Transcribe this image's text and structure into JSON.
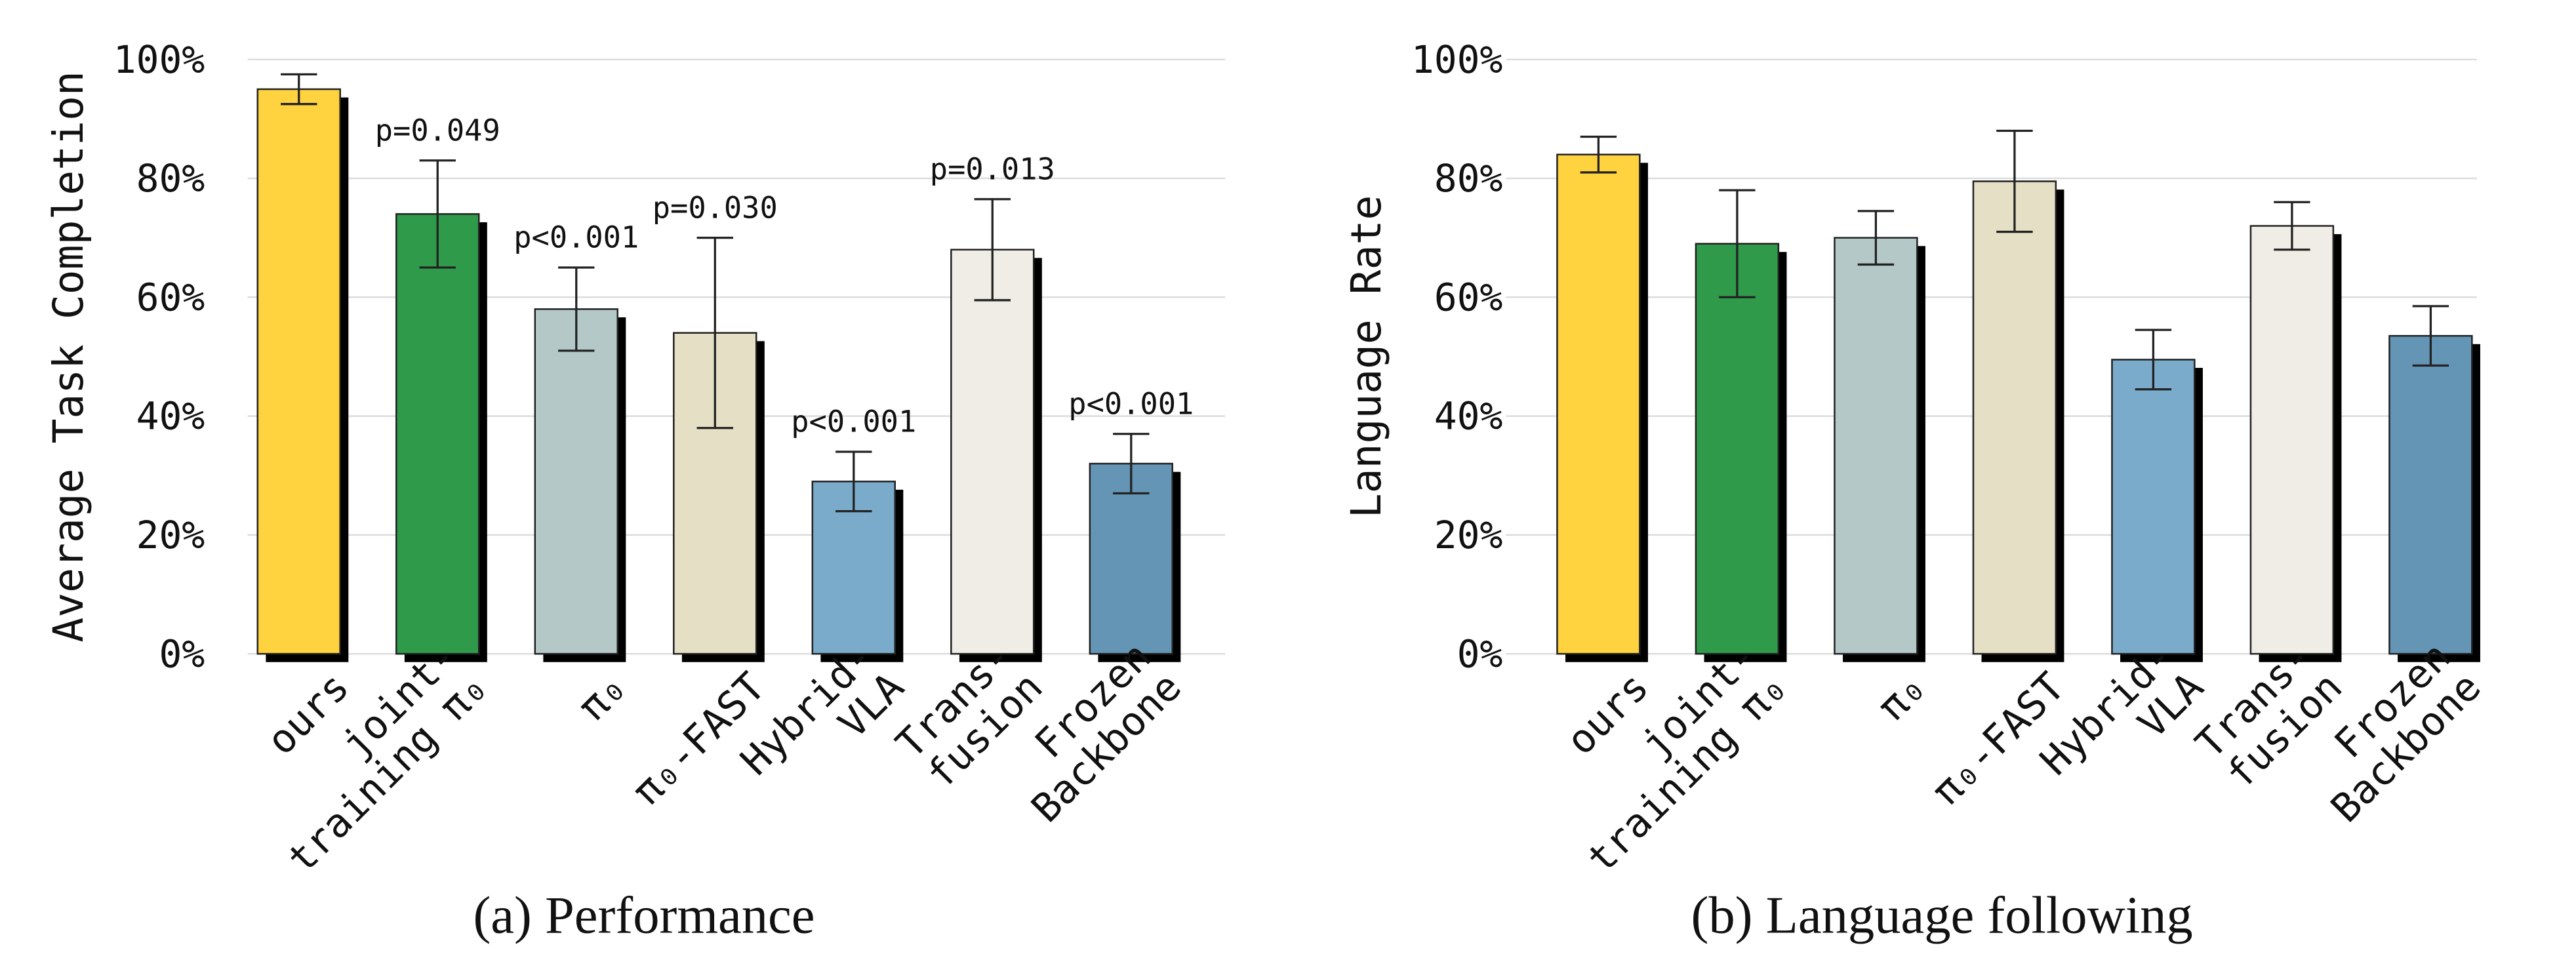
{
  "chart_data": [
    {
      "type": "bar",
      "caption": "(a) Performance",
      "ylabel": "Average Task Completion",
      "categories": [
        [
          "ours"
        ],
        [
          "joint-",
          "training π₀"
        ],
        [
          "π₀"
        ],
        [
          "π₀-FAST"
        ],
        [
          "Hybrid-",
          "VLA"
        ],
        [
          "Trans-",
          "fusion"
        ],
        [
          "Frozen",
          "Backbone"
        ]
      ],
      "values": [
        95,
        74,
        58,
        54,
        29,
        68,
        32
      ],
      "errors": [
        2.5,
        9,
        7,
        16,
        5,
        8.5,
        5
      ],
      "annotations": [
        null,
        "p=0.049",
        "p<0.001",
        "p=0.030",
        "p<0.001",
        "p=0.013",
        "p<0.001"
      ],
      "colors": [
        "#FFD23F",
        "#2E9A4A",
        "#B5C8C8",
        "#E5DFC6",
        "#7BABCB",
        "#EFEDE6",
        "#6595B5"
      ],
      "ylim": [
        0,
        100
      ],
      "yticks": [
        {
          "value": 0,
          "label": "0%"
        },
        {
          "value": 20,
          "label": "20%"
        },
        {
          "value": 40,
          "label": "40%"
        },
        {
          "value": 60,
          "label": "60%"
        },
        {
          "value": 80,
          "label": "80%"
        },
        {
          "value": 100,
          "label": "100%"
        }
      ],
      "grid": true
    },
    {
      "type": "bar",
      "caption": "(b) Language following",
      "ylabel": "Language Rate",
      "categories": [
        [
          "ours"
        ],
        [
          "joint-",
          "training π₀"
        ],
        [
          "π₀"
        ],
        [
          "π₀-FAST"
        ],
        [
          "Hybrid-",
          "VLA"
        ],
        [
          "Trans-",
          "fusion"
        ],
        [
          "Frozen",
          "Backbone"
        ]
      ],
      "values": [
        84,
        69,
        70,
        79.5,
        49.5,
        72,
        53.5
      ],
      "errors": [
        3,
        9,
        4.5,
        8.5,
        5,
        4,
        5
      ],
      "colors": [
        "#FFD23F",
        "#2E9A4A",
        "#B5C8C8",
        "#E5DFC6",
        "#7BABCB",
        "#EFEDE6",
        "#6595B5"
      ],
      "ylim": [
        0,
        100
      ],
      "yticks": [
        {
          "value": 0,
          "label": "0%"
        },
        {
          "value": 20,
          "label": "20%"
        },
        {
          "value": 40,
          "label": "40%"
        },
        {
          "value": 60,
          "label": "60%"
        },
        {
          "value": 80,
          "label": "80%"
        },
        {
          "value": 100,
          "label": "100%"
        }
      ],
      "grid": true
    }
  ]
}
